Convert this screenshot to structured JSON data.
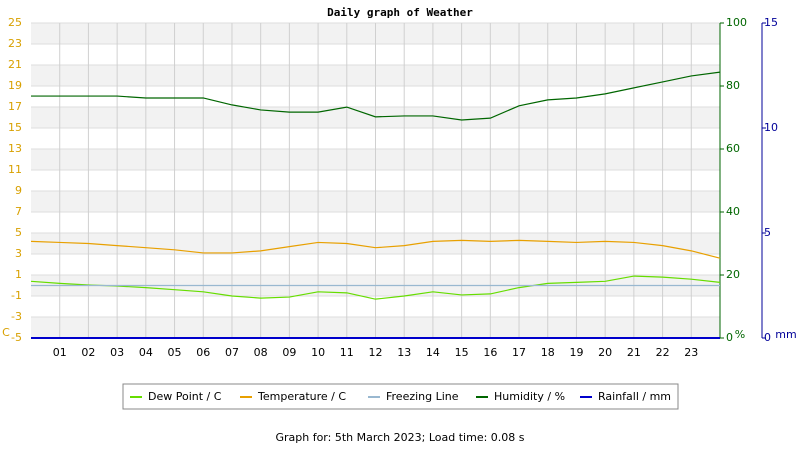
{
  "chart_data": {
    "type": "line",
    "title": "Daily graph of Weather",
    "footer": "Graph for: 5th March 2023; Load time: 0.08 s",
    "y_unit": "C",
    "y2_unit": "%",
    "y3_unit": "mm",
    "x": [
      0,
      1,
      2,
      3,
      4,
      5,
      6,
      7,
      8,
      9,
      10,
      11,
      12,
      13,
      14,
      15,
      16,
      17,
      18,
      19,
      20,
      21,
      22,
      23,
      24
    ],
    "xlim": [
      0,
      24
    ],
    "xticks": [
      {
        "value": 1,
        "label": "01"
      },
      {
        "value": 2,
        "label": "02"
      },
      {
        "value": 3,
        "label": "03"
      },
      {
        "value": 4,
        "label": "04"
      },
      {
        "value": 5,
        "label": "05"
      },
      {
        "value": 6,
        "label": "06"
      },
      {
        "value": 7,
        "label": "07"
      },
      {
        "value": 8,
        "label": "08"
      },
      {
        "value": 9,
        "label": "09"
      },
      {
        "value": 10,
        "label": "10"
      },
      {
        "value": 11,
        "label": "11"
      },
      {
        "value": 12,
        "label": "12"
      },
      {
        "value": 13,
        "label": "13"
      },
      {
        "value": 14,
        "label": "14"
      },
      {
        "value": 15,
        "label": "15"
      },
      {
        "value": 16,
        "label": "16"
      },
      {
        "value": 17,
        "label": "17"
      },
      {
        "value": 18,
        "label": "18"
      },
      {
        "value": 19,
        "label": "19"
      },
      {
        "value": 20,
        "label": "20"
      },
      {
        "value": 21,
        "label": "21"
      },
      {
        "value": 22,
        "label": "22"
      },
      {
        "value": 23,
        "label": "23"
      }
    ],
    "ylim": [
      -5,
      25
    ],
    "yticks": [
      -5,
      -3,
      -1,
      1,
      3,
      5,
      7,
      9,
      11,
      13,
      15,
      17,
      19,
      21,
      23,
      25
    ],
    "y2lim": [
      0,
      100
    ],
    "y2ticks": [
      0,
      20,
      40,
      60,
      80,
      100
    ],
    "y3lim": [
      0,
      15
    ],
    "y3ticks": [
      0,
      5,
      10,
      15
    ],
    "grid": true,
    "series": [
      {
        "name": "Dew Point / C",
        "color": "#66dd00",
        "values": [
          0.4,
          0.2,
          0.05,
          -0.05,
          -0.2,
          -0.4,
          -0.6,
          -1,
          -1.2,
          -1.1,
          -0.6,
          -0.7,
          -1.3,
          -1,
          -0.6,
          -0.9,
          -0.8,
          -0.2,
          0.2,
          0.3,
          0.4,
          0.9,
          0.8,
          0.6,
          0.3
        ]
      },
      {
        "name": "Temperature / C",
        "color": "#e8a000",
        "values": [
          4.2,
          4.1,
          4,
          3.8,
          3.6,
          3.4,
          3.1,
          3.1,
          3.3,
          3.7,
          4.1,
          4,
          3.6,
          3.8,
          4.2,
          4.3,
          4.2,
          4.3,
          4.2,
          4.1,
          4.2,
          4.1,
          3.8,
          3.3,
          2.6
        ]
      },
      {
        "name": "Freezing Line",
        "color": "#99b8d0",
        "values": [
          0,
          0,
          0,
          0,
          0,
          0,
          0,
          0,
          0,
          0,
          0,
          0,
          0,
          0,
          0,
          0,
          0,
          0,
          0,
          0,
          0,
          0,
          0,
          0,
          0
        ]
      },
      {
        "name": "Humidity / %",
        "color": "#006600",
        "axis": "y2",
        "values": [
          76.8,
          76.8,
          76.8,
          76.8,
          76.2,
          76.2,
          76.2,
          74,
          72.4,
          71.7,
          71.7,
          73.3,
          70.2,
          70.5,
          70.5,
          69.2,
          69.8,
          73.7,
          75.6,
          76.2,
          77.5,
          79.4,
          81.3,
          83.2,
          84.4
        ]
      },
      {
        "name": "Rainfall / mm",
        "color": "#0000cc",
        "axis": "y3",
        "values": [
          0,
          0,
          0,
          0,
          0,
          0,
          0,
          0,
          0,
          0,
          0,
          0,
          0,
          0,
          0,
          0,
          0,
          0,
          0,
          0,
          0,
          0,
          0,
          0,
          0
        ]
      }
    ]
  }
}
